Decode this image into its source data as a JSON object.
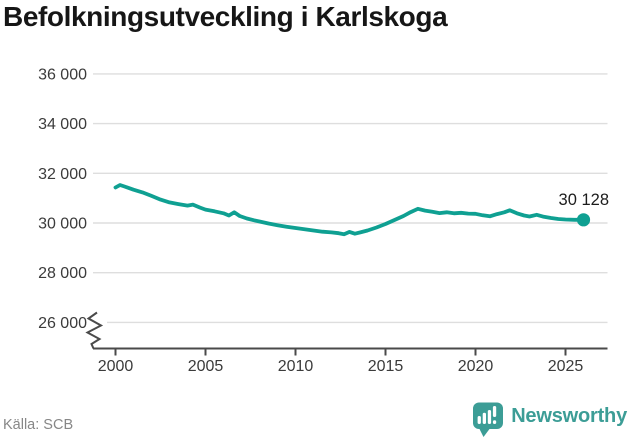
{
  "title": "Befolkningsutveckling i Karlskoga",
  "footer": {
    "source": "Källa: SCB",
    "brand_name": "Newsworthy"
  },
  "colors": {
    "line": "#0fa092",
    "gridline": "#dedede",
    "axis": "#4a4a4a",
    "axis_text": "#3b3b3b",
    "title_text": "#161616",
    "source_text": "#878787",
    "brand": "#3c9d96",
    "label_text": "#1c1c1c"
  },
  "chart_data": {
    "type": "line",
    "title": "Befolkningsutveckling i Karlskoga",
    "xlabel": "",
    "ylabel": "",
    "grid": true,
    "axis_break": true,
    "xlim": [
      1998.8,
      2027.3
    ],
    "ylim": [
      26000,
      37000
    ],
    "y_ticks": [
      {
        "value": 36000,
        "label": "36 000"
      },
      {
        "value": 34000,
        "label": "34 000"
      },
      {
        "value": 32000,
        "label": "32 000"
      },
      {
        "value": 30000,
        "label": "30 000"
      },
      {
        "value": 28000,
        "label": "28 000"
      },
      {
        "value": 26000,
        "label": "26 000"
      }
    ],
    "x_ticks": [
      {
        "value": 2000,
        "label": "2000"
      },
      {
        "value": 2005,
        "label": "2005"
      },
      {
        "value": 2010,
        "label": "2010"
      },
      {
        "value": 2015,
        "label": "2015"
      },
      {
        "value": 2020,
        "label": "2020"
      },
      {
        "value": 2025,
        "label": "2025"
      }
    ],
    "last_value": 30128,
    "last_value_label": "30 128",
    "series": [
      {
        "name": "Befolkning i Karlskoga",
        "x": [
          2000.0,
          2000.25,
          2000.5,
          2001,
          2001.5,
          2002,
          2002.5,
          2003,
          2003.5,
          2004,
          2004.3,
          2004.7,
          2005,
          2005.5,
          2006,
          2006.3,
          2006.6,
          2006.9,
          2007.3,
          2007.7,
          2008,
          2008.5,
          2009,
          2009.5,
          2010,
          2010.5,
          2011,
          2011.5,
          2012,
          2012.4,
          2012.7,
          2013,
          2013.3,
          2013.6,
          2014,
          2014.5,
          2015,
          2015.5,
          2016,
          2016.4,
          2016.8,
          2017.2,
          2017.6,
          2018,
          2018.4,
          2018.8,
          2019.2,
          2019.6,
          2020,
          2020.4,
          2020.8,
          2021.2,
          2021.6,
          2021.9,
          2022.3,
          2022.7,
          2023,
          2023.4,
          2023.8,
          2024.2,
          2024.6,
          2025,
          2025.5,
          2026
        ],
        "values": [
          31430,
          31530,
          31470,
          31340,
          31230,
          31090,
          30940,
          30830,
          30760,
          30700,
          30740,
          30620,
          30540,
          30470,
          30390,
          30300,
          30430,
          30280,
          30180,
          30110,
          30060,
          29980,
          29910,
          29850,
          29800,
          29750,
          29700,
          29650,
          29620,
          29590,
          29550,
          29640,
          29570,
          29620,
          29700,
          29820,
          29960,
          30120,
          30280,
          30440,
          30570,
          30500,
          30450,
          30400,
          30430,
          30390,
          30410,
          30380,
          30370,
          30310,
          30270,
          30360,
          30430,
          30510,
          30390,
          30300,
          30260,
          30330,
          30250,
          30200,
          30160,
          30140,
          30130,
          30128
        ]
      }
    ]
  }
}
